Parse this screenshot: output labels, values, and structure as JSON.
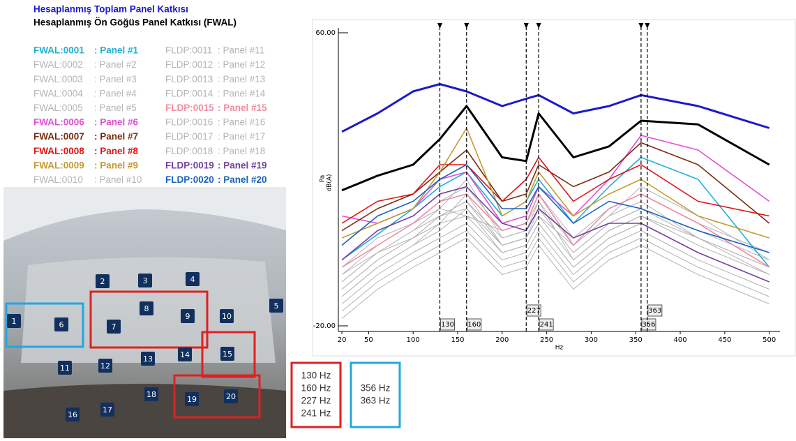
{
  "chart_data": {
    "type": "line",
    "x_label": "Hz",
    "y_label_top": "Pa",
    "y_label": "dB(A)",
    "xlim": [
      16,
      512
    ],
    "ylim": [
      -20,
      60
    ],
    "xticks": [
      20,
      50,
      100,
      150,
      200,
      250,
      300,
      350,
      400,
      450,
      500
    ],
    "yticks": [
      {
        "value": 60,
        "label": "60.00"
      },
      {
        "value": -20,
        "label": "-20.00"
      }
    ],
    "markers": [
      {
        "value": 130,
        "label": "130"
      },
      {
        "value": 160,
        "label": "160"
      },
      {
        "value": 227,
        "label": "227"
      },
      {
        "value": 241,
        "label": "241"
      },
      {
        "value": 356,
        "label": "356"
      },
      {
        "value": 363,
        "label": "363"
      }
    ],
    "x": [
      20,
      60,
      100,
      130,
      160,
      200,
      227,
      241,
      280,
      320,
      356,
      420,
      500
    ],
    "series": [
      {
        "name": "Hesaplanmış Toplam Panel Katkısı",
        "color": "#1a1acc",
        "values": [
          33,
          38,
          44,
          46,
          44,
          40,
          42,
          43,
          38,
          40,
          43,
          40,
          34
        ]
      },
      {
        "name": "Hesaplanmış Ön Göğüs Panel Katkısı (FWAL)",
        "color": "#000000",
        "values": [
          17,
          21,
          24,
          31,
          40,
          26,
          25,
          38,
          26,
          29,
          36,
          35,
          24
        ]
      },
      {
        "name": "FWAL:0001",
        "label": ": Panel #1",
        "color": "#1fb0d8",
        "values": [
          -2,
          5,
          12,
          18,
          22,
          10,
          14,
          20,
          8,
          18,
          26,
          20,
          -4
        ]
      },
      {
        "name": "FWAL:0002",
        "label": ": Panel #2",
        "color": "#b4b4b4",
        "values": [
          -8,
          0,
          6,
          10,
          14,
          4,
          6,
          12,
          0,
          8,
          12,
          6,
          -2
        ]
      },
      {
        "name": "FWAL:0003",
        "label": ": Panel #3",
        "color": "#b4b4b4",
        "values": [
          -10,
          -2,
          4,
          8,
          16,
          2,
          4,
          10,
          2,
          10,
          14,
          4,
          -4
        ]
      },
      {
        "name": "FWAL:0004",
        "label": ": Panel #4",
        "color": "#b4b4b4",
        "values": [
          -6,
          2,
          8,
          12,
          10,
          6,
          8,
          14,
          -2,
          6,
          10,
          2,
          -6
        ]
      },
      {
        "name": "FWAL:0005",
        "label": ": Panel #5",
        "color": "#b4b4b4",
        "values": [
          -12,
          -4,
          2,
          6,
          12,
          0,
          2,
          8,
          -4,
          4,
          8,
          0,
          -8
        ]
      },
      {
        "name": "FWAL:0006",
        "label": ": Panel #6",
        "color": "#e24ed4",
        "values": [
          10,
          8,
          12,
          20,
          22,
          8,
          10,
          18,
          10,
          20,
          32,
          28,
          14
        ]
      },
      {
        "name": "FWAL:0007",
        "label": ": Panel #7",
        "color": "#7a2c10",
        "values": [
          6,
          12,
          16,
          22,
          28,
          14,
          16,
          24,
          18,
          22,
          30,
          24,
          8
        ]
      },
      {
        "name": "FWAL:0008",
        "label": ": Panel #8",
        "color": "#e01414",
        "values": [
          8,
          14,
          16,
          24,
          24,
          14,
          20,
          26,
          14,
          20,
          24,
          14,
          10
        ]
      },
      {
        "name": "FWAL:0009",
        "label": ": Panel #9",
        "color": "#c49a30",
        "values": [
          4,
          8,
          12,
          22,
          34,
          10,
          14,
          22,
          10,
          16,
          20,
          10,
          4
        ]
      },
      {
        "name": "FWAL:0010",
        "label": ": Panel #10",
        "color": "#b4b4b4",
        "values": [
          -14,
          -6,
          0,
          4,
          8,
          -2,
          0,
          6,
          -6,
          2,
          6,
          -2,
          -10
        ]
      },
      {
        "name": "FLDP:0011",
        "label": ": Panel #11",
        "color": "#b4b4b4",
        "values": [
          -4,
          4,
          8,
          14,
          18,
          6,
          8,
          16,
          4,
          12,
          16,
          8,
          0
        ]
      },
      {
        "name": "FLDP:0012",
        "label": ": Panel #12",
        "color": "#b4b4b4",
        "values": [
          -16,
          -8,
          -2,
          2,
          6,
          -4,
          -2,
          4,
          -8,
          0,
          4,
          -4,
          -12
        ]
      },
      {
        "name": "FLDP:0013",
        "label": ": Panel #13",
        "color": "#b4b4b4",
        "values": [
          -6,
          0,
          6,
          12,
          20,
          4,
          6,
          14,
          2,
          10,
          18,
          10,
          -2
        ]
      },
      {
        "name": "FLDP:0014",
        "label": ": Panel #14",
        "color": "#b4b4b4",
        "values": [
          -10,
          -2,
          4,
          10,
          12,
          2,
          4,
          10,
          -2,
          6,
          10,
          4,
          -6
        ]
      },
      {
        "name": "FLDP:0015",
        "label": ": Panel #15",
        "color": "#f08ca0",
        "values": [
          -4,
          2,
          8,
          14,
          16,
          6,
          8,
          16,
          2,
          12,
          16,
          8,
          -4
        ]
      },
      {
        "name": "FLDP:0016",
        "label": ": Panel #16",
        "color": "#b4b4b4",
        "values": [
          -18,
          -10,
          -4,
          0,
          4,
          -6,
          -4,
          2,
          -10,
          -2,
          2,
          -6,
          -14
        ]
      },
      {
        "name": "FLDP:0017",
        "label": ": Panel #17",
        "color": "#b4b4b4",
        "values": [
          -12,
          -4,
          2,
          8,
          10,
          0,
          2,
          8,
          -4,
          4,
          8,
          0,
          -8
        ]
      },
      {
        "name": "FLDP:0018",
        "label": ": Panel #18",
        "color": "#b4b4b4",
        "values": [
          -8,
          0,
          4,
          10,
          14,
          2,
          4,
          12,
          0,
          8,
          12,
          4,
          -4
        ]
      },
      {
        "name": "FLDP:0019",
        "label": ": Panel #19",
        "color": "#7440a4",
        "values": [
          -2,
          6,
          10,
          16,
          18,
          8,
          6,
          12,
          4,
          8,
          8,
          0,
          -8
        ]
      },
      {
        "name": "FLDP:0020",
        "label": ": Panel #20",
        "color": "#1a62c0",
        "values": [
          2,
          10,
          14,
          20,
          24,
          12,
          12,
          18,
          8,
          14,
          12,
          6,
          0
        ]
      }
    ]
  },
  "photo": {
    "panels": [
      "1",
      "2",
      "3",
      "4",
      "5",
      "6",
      "7",
      "8",
      "9",
      "10",
      "11",
      "12",
      "13",
      "14",
      "15",
      "16",
      "17",
      "18",
      "19",
      "20"
    ]
  },
  "frequency_boxes": [
    {
      "color": "#e02020",
      "lines": [
        "130 Hz",
        "160 Hz",
        "227 Hz",
        "241 Hz"
      ]
    },
    {
      "color": "#20a8e0",
      "lines": [
        "356 Hz",
        "363 Hz"
      ]
    }
  ]
}
